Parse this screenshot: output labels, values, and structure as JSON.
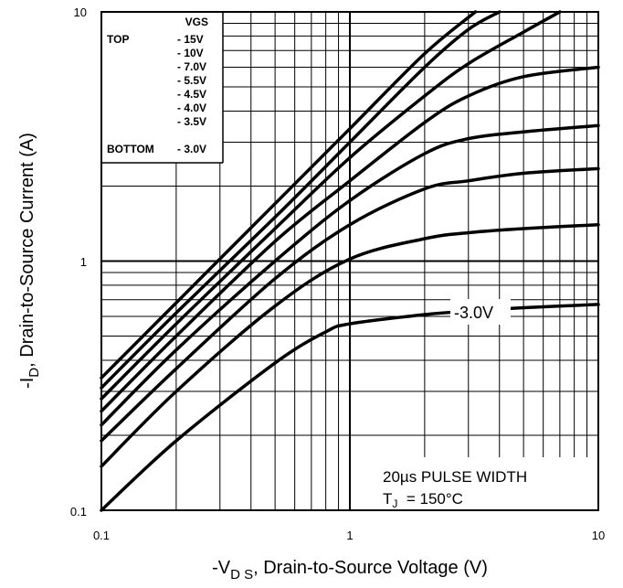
{
  "chart_data": {
    "type": "line",
    "x_scale": "log",
    "y_scale": "log",
    "xlim": [
      0.1,
      10
    ],
    "ylim": [
      0.1,
      10
    ],
    "grid": true,
    "x_ticks": [
      "0.1",
      "1",
      "10"
    ],
    "y_ticks": [
      "0.1",
      "1",
      "10"
    ],
    "xlabel": {
      "pre": "-V",
      "sub": "D S",
      "post": ", Drain-to-Source Voltage (V)"
    },
    "ylabel": {
      "pre": "-I",
      "sub": "D",
      "post": ", Drain-to-Source Current (A)"
    },
    "legend": {
      "header": "VGS",
      "top_label": "TOP",
      "bottom_label": "BOTTOM",
      "entries": [
        "- 15V",
        "- 10V",
        "- 7.0V",
        "- 5.5V",
        "- 4.5V",
        "- 4.0V",
        "- 3.5V",
        "- 3.0V"
      ],
      "placement": "top-left"
    },
    "annotation": {
      "line1": "20µs PULSE WIDTH",
      "line2_pre": "T",
      "line2_sub": "J",
      "line2_post": "  = 150°C"
    },
    "curve_label": "-3.0V",
    "series": [
      {
        "name": "- 15V",
        "x": [
          0.1,
          0.2,
          0.5,
          1,
          2,
          3.2
        ],
        "y": [
          0.34,
          0.68,
          1.7,
          3.4,
          6.8,
          10
        ]
      },
      {
        "name": "- 10V",
        "x": [
          0.1,
          0.2,
          0.5,
          1,
          2,
          3,
          4
        ],
        "y": [
          0.31,
          0.62,
          1.5,
          3.0,
          6.0,
          8.5,
          10
        ]
      },
      {
        "name": "- 7.0V",
        "x": [
          0.1,
          0.2,
          0.5,
          1,
          2,
          3,
          5,
          7
        ],
        "y": [
          0.28,
          0.56,
          1.35,
          2.6,
          4.6,
          6.2,
          8.3,
          10
        ]
      },
      {
        "name": "- 5.5V",
        "x": [
          0.1,
          0.2,
          0.5,
          1,
          2,
          3,
          5,
          10
        ],
        "y": [
          0.25,
          0.5,
          1.2,
          2.1,
          3.6,
          4.6,
          5.5,
          6.0
        ]
      },
      {
        "name": "- 4.5V",
        "x": [
          0.1,
          0.2,
          0.5,
          1,
          2,
          3,
          5,
          10
        ],
        "y": [
          0.22,
          0.44,
          1.0,
          1.75,
          2.7,
          3.1,
          3.3,
          3.5
        ]
      },
      {
        "name": "- 4.0V",
        "x": [
          0.1,
          0.2,
          0.5,
          1,
          2,
          3,
          5,
          10
        ],
        "y": [
          0.19,
          0.37,
          0.85,
          1.4,
          1.95,
          2.1,
          2.25,
          2.35
        ]
      },
      {
        "name": "- 3.5V",
        "x": [
          0.1,
          0.2,
          0.5,
          1,
          2,
          3,
          5,
          10
        ],
        "y": [
          0.15,
          0.3,
          0.66,
          1.02,
          1.23,
          1.3,
          1.35,
          1.4
        ]
      },
      {
        "name": "- 3.0V",
        "x": [
          0.1,
          0.2,
          0.5,
          0.8,
          1,
          2,
          3,
          5,
          10
        ],
        "y": [
          0.1,
          0.19,
          0.39,
          0.52,
          0.56,
          0.61,
          0.63,
          0.65,
          0.67
        ]
      }
    ]
  }
}
